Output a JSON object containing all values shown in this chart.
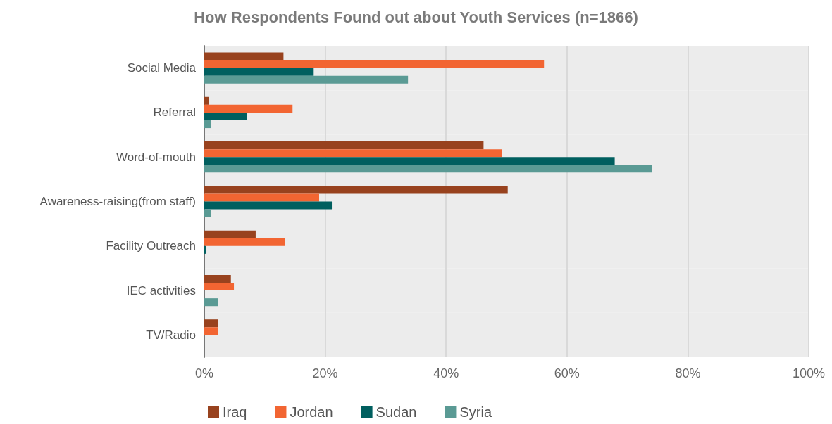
{
  "chart_data": {
    "type": "bar",
    "orientation": "horizontal",
    "title": "How Respondents Found out about Youth Services (n=1866)",
    "categories": [
      "Social Media",
      "Referral",
      "Word-of-mouth",
      "Awareness-raising(from staff)",
      "Facility Outreach",
      "IEC activities",
      "TV/Radio"
    ],
    "series": [
      {
        "name": "Iraq",
        "color": "#98421e",
        "values": [
          13.1,
          0.8,
          46.2,
          50.2,
          8.5,
          4.4,
          2.3
        ]
      },
      {
        "name": "Jordan",
        "color": "#f26532",
        "values": [
          56.2,
          14.6,
          49.2,
          19.0,
          13.4,
          4.9,
          2.3
        ]
      },
      {
        "name": "Sudan",
        "color": "#005f5f",
        "values": [
          18.1,
          7.0,
          67.9,
          21.1,
          0.3,
          0,
          0
        ]
      },
      {
        "name": "Syria",
        "color": "#5a9a94",
        "values": [
          33.7,
          1.1,
          74.1,
          1.1,
          null,
          2.3,
          0
        ]
      }
    ],
    "xlim": [
      0,
      100
    ],
    "xticks": [
      {
        "value": 0,
        "label": "0%"
      },
      {
        "value": 20,
        "label": "20%"
      },
      {
        "value": 40,
        "label": "40%"
      },
      {
        "value": 60,
        "label": "60%"
      },
      {
        "value": 80,
        "label": "80%"
      },
      {
        "value": 100,
        "label": "100%"
      }
    ],
    "grid": "x",
    "legend": "bottom"
  }
}
